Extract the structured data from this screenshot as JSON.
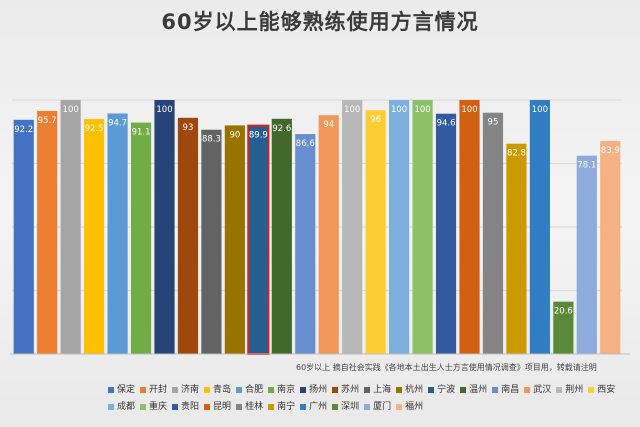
{
  "chart_data": {
    "type": "bar",
    "title": "60岁以上能够熟练使用方言情况",
    "note": "60岁以上 摘自社会实践《各地本土出生人士方言使用情况调查》项目用，转载请注明",
    "ylim": [
      0,
      100
    ],
    "grid": true,
    "legend_position": "bottom",
    "categories": [
      "保定",
      "开封",
      "济南",
      "青岛",
      "合肥",
      "南京",
      "扬州",
      "苏州",
      "上海",
      "杭州",
      "宁波",
      "温州",
      "南昌",
      "武汉",
      "荆州",
      "西安",
      "成都",
      "重庆",
      "贵阳",
      "昆明",
      "桂林",
      "南宁",
      "广州",
      "深圳",
      "厦门",
      "福州"
    ],
    "values": [
      92.2,
      95.7,
      100,
      92.5,
      94.7,
      91.1,
      100,
      93,
      88.3,
      90,
      89.9,
      92.6,
      86.6,
      94,
      100,
      96,
      100,
      100,
      94.6,
      100,
      95,
      82.8,
      100,
      20.6,
      78.1,
      83.9
    ],
    "labels": [
      "92.2",
      "95.7",
      "100",
      "92.5",
      "94.7",
      "91.1",
      "100",
      "93",
      "88.3",
      "90",
      "89.9",
      "92.6",
      "86.6",
      "94",
      "100",
      "96",
      "100",
      "100",
      "94.6",
      "100",
      "95",
      "82.8",
      "100",
      "20.6",
      "78.1",
      "83.9"
    ],
    "colors": [
      "#4472c4",
      "#ed7d31",
      "#a5a5a5",
      "#ffc000",
      "#5b9bd5",
      "#70ad47",
      "#264478",
      "#9e480e",
      "#636363",
      "#997300",
      "#255e91",
      "#43682b",
      "#698ed0",
      "#f1975a",
      "#b7b7b7",
      "#ffcd33",
      "#7cafdd",
      "#8cc168",
      "#335aa1",
      "#d26012",
      "#848484",
      "#cc9a00",
      "#327dc2",
      "#5a8a39",
      "#8faadc",
      "#f4b183"
    ],
    "highlight_index": 10
  }
}
